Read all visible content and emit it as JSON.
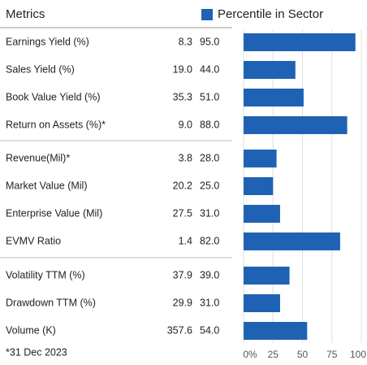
{
  "chart_data": {
    "type": "hbar",
    "header": "Metrics",
    "footnote": "*31 Dec 2023",
    "categories": [
      "Earnings Yield (%)",
      "Sales Yield (%)",
      "Book Value Yield (%)",
      "Return on Assets (%)*",
      "Revenue(Mil)*",
      "Market Value (Mil)",
      "Enterprise Value (Mil)",
      "EVMV Ratio",
      "Volatility TTM (%)",
      "Drawdown TTM (%)",
      "Volume (K)"
    ],
    "metric_values": [
      "8.3",
      "19.0",
      "35.3",
      "9.0",
      "3.8",
      "20.2",
      "27.5",
      "1.4",
      "37.9",
      "29.9",
      "357.6"
    ],
    "series": [
      {
        "name": "Percentile in Sector",
        "color": "#1f62b4",
        "values": [
          95,
          44,
          51,
          88,
          28,
          25,
          31,
          82,
          39,
          31,
          54
        ],
        "value_labels": [
          "95.0",
          "44.0",
          "51.0",
          "88.0",
          "28.0",
          "25.0",
          "31.0",
          "82.0",
          "39.0",
          "31.0",
          "54.0"
        ]
      }
    ],
    "xlim": [
      0,
      100
    ],
    "xticks": [
      {
        "value": 0,
        "label": "0%"
      },
      25,
      50,
      75,
      100
    ],
    "grid": true
  }
}
